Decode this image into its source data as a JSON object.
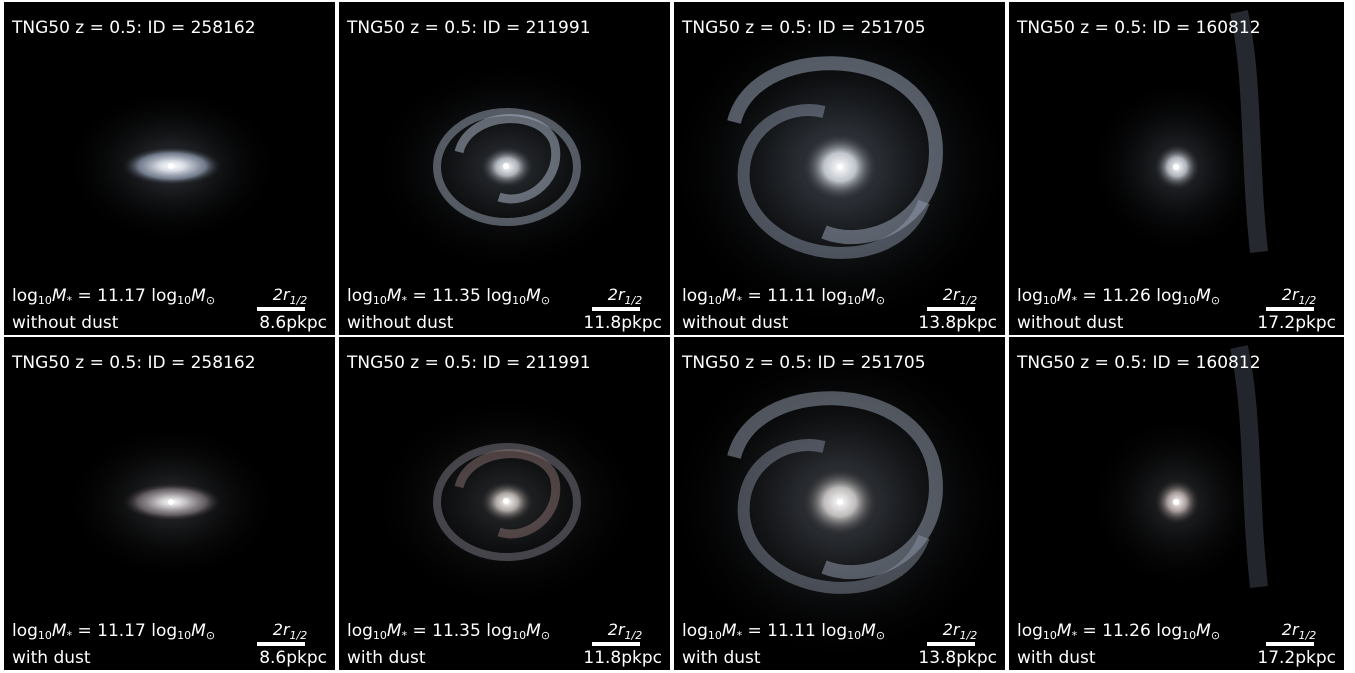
{
  "rows": [
    {
      "dust_label": "without dust",
      "panels": [
        {
          "title": "TNG50 z = 0.5: ID = 258162",
          "mass_prefix": "log",
          "mass_value": "= 11.17",
          "scale_label": "2r",
          "scale_sub": "1/2",
          "scale_length": "8.6pkpc"
        },
        {
          "title": "TNG50 z = 0.5: ID = 211991",
          "mass_prefix": "log",
          "mass_value": "= 11.35",
          "scale_label": "2r",
          "scale_sub": "1/2",
          "scale_length": "11.8pkpc"
        },
        {
          "title": "TNG50 z = 0.5: ID = 251705",
          "mass_prefix": "log",
          "mass_value": "= 11.11",
          "scale_label": "2r",
          "scale_sub": "1/2",
          "scale_length": "13.8pkpc"
        },
        {
          "title": "TNG50 z = 0.5: ID = 160812",
          "mass_prefix": "log",
          "mass_value": "= 11.26",
          "scale_label": "2r",
          "scale_sub": "1/2",
          "scale_length": "17.2pkpc"
        }
      ]
    },
    {
      "dust_label": "with dust",
      "panels": [
        {
          "title": "TNG50 z = 0.5: ID = 258162",
          "mass_prefix": "log",
          "mass_value": "= 11.17",
          "scale_label": "2r",
          "scale_sub": "1/2",
          "scale_length": "8.6pkpc"
        },
        {
          "title": "TNG50 z = 0.5: ID = 211991",
          "mass_prefix": "log",
          "mass_value": "= 11.35",
          "scale_label": "2r",
          "scale_sub": "1/2",
          "scale_length": "11.8pkpc"
        },
        {
          "title": "TNG50 z = 0.5: ID = 251705",
          "mass_prefix": "log",
          "mass_value": "= 11.11",
          "scale_label": "2r",
          "scale_sub": "1/2",
          "scale_length": "13.8pkpc"
        },
        {
          "title": "TNG50 z = 0.5: ID = 160812",
          "mass_prefix": "log",
          "mass_value": "= 11.26",
          "scale_label": "2r",
          "scale_sub": "1/2",
          "scale_length": "17.2pkpc"
        }
      ]
    }
  ],
  "mass_sub": "10",
  "mass_symbol": "M",
  "mass_star": "*",
  "mass_unit_prefix": "log",
  "mass_unit_sub": "10",
  "mass_unit_symbol": "M",
  "mass_unit_sun": "⊙",
  "colors": {
    "background": "#000000",
    "text": "#ffffff",
    "separator": "#ffffff"
  }
}
